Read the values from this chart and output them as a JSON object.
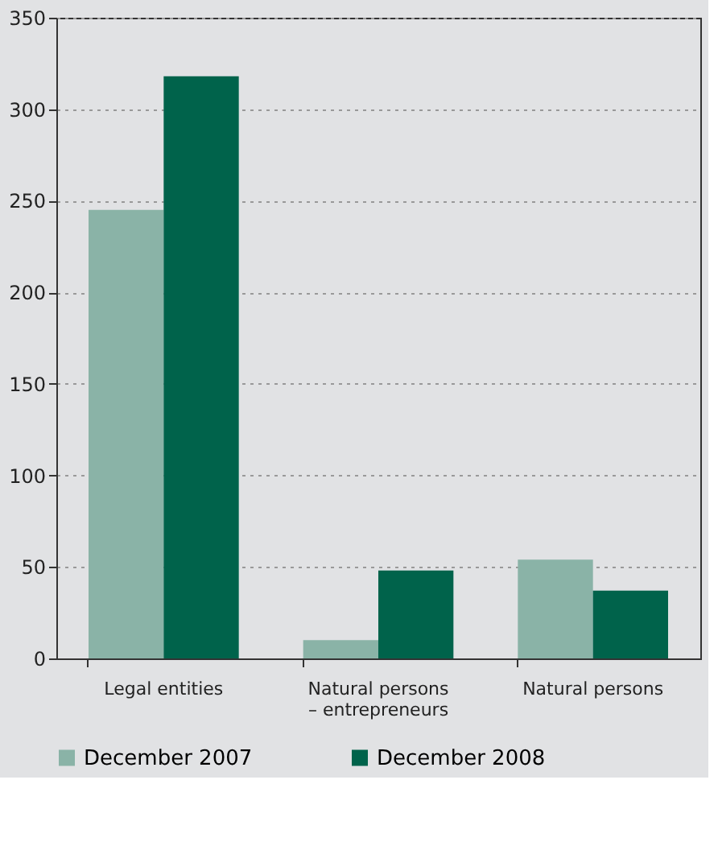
{
  "chart_data": {
    "type": "bar",
    "categories": [
      "Legal entities",
      "Natural persons\n– entrepreneurs",
      "Natural persons"
    ],
    "series": [
      {
        "name": "December 2007",
        "color": "#8ab3a7",
        "values": [
          245,
          10,
          54
        ]
      },
      {
        "name": "December 2008",
        "color": "#00634b",
        "values": [
          318,
          48,
          37
        ]
      }
    ],
    "ylim": [
      0,
      350
    ],
    "yticks": [
      0,
      50,
      100,
      150,
      200,
      250,
      300,
      350
    ],
    "grid": "y",
    "legend": "bottom"
  }
}
